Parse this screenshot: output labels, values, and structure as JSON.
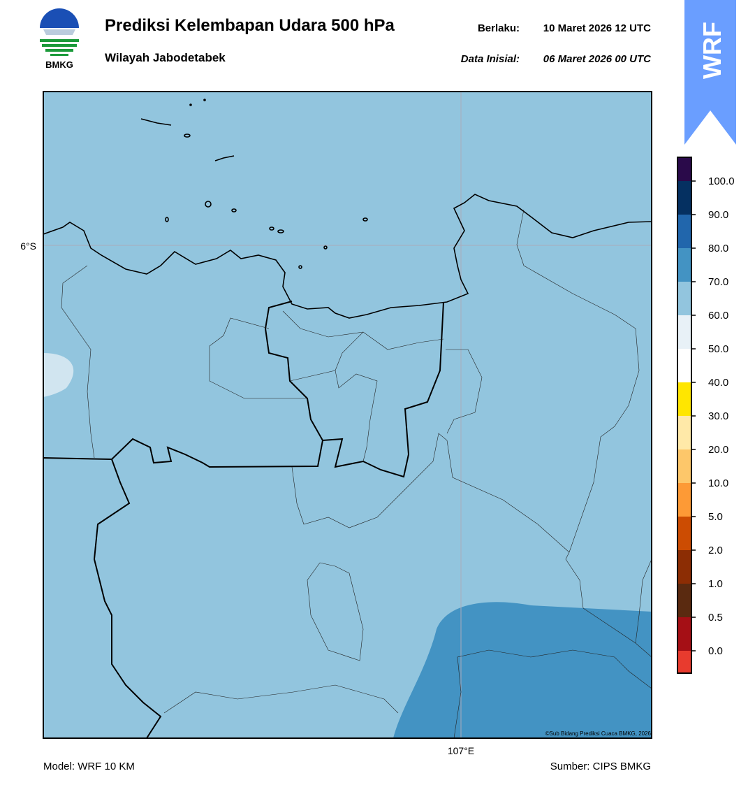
{
  "header": {
    "title": "Prediksi Kelembapan Udara 500 hPa",
    "subtitle": "Wilayah Jabodetabek",
    "valid_label": "Berlaku:",
    "valid_time": "10 Maret 2026 12 UTC",
    "init_label": "Data Inisial:",
    "init_time": "06 Maret 2026 00 UTC",
    "logo_text": "BMKG",
    "badge": "WRF"
  },
  "map": {
    "lat_label": "6°S",
    "lon_label": "107°E",
    "credit": "©Sub Bidang Prediksi Cuaca BMKG, 2026"
  },
  "colorbar": {
    "ticks": [
      {
        "value": 0,
        "label": "0.0"
      },
      0.5,
      {
        "value": 1,
        "label": "1.0"
      },
      {
        "value": 2,
        "label": "2.0"
      },
      {
        "value": 5,
        "label": "5.0"
      },
      {
        "value": 10,
        "label": "10.0"
      },
      {
        "value": 20,
        "label": "20.0"
      },
      {
        "value": 30,
        "label": "30.0"
      },
      {
        "value": 40,
        "label": "40.0"
      },
      {
        "value": 50,
        "label": "50.0"
      },
      {
        "value": 60,
        "label": "60.0"
      },
      {
        "value": 70,
        "label": "70.0"
      },
      {
        "value": 80,
        "label": "80.0"
      },
      {
        "value": 90,
        "label": "90.0"
      },
      {
        "value": 100,
        "label": "100.0"
      }
    ],
    "colors": [
      "#e83b2e",
      "#a50f15",
      "#5a2a10",
      "#8c2d04",
      "#cc4c02",
      "#fd9a36",
      "#fdc76a",
      "#ffe9a8",
      "#ffe600",
      "#ffffff",
      "#e8f1f7",
      "#92c5de",
      "#4393c3",
      "#2166ac",
      "#053061",
      "#2a0a4a"
    ]
  },
  "footer": {
    "model": "Model: WRF 10 KM",
    "source": "Sumber: CIPS BMKG"
  }
}
